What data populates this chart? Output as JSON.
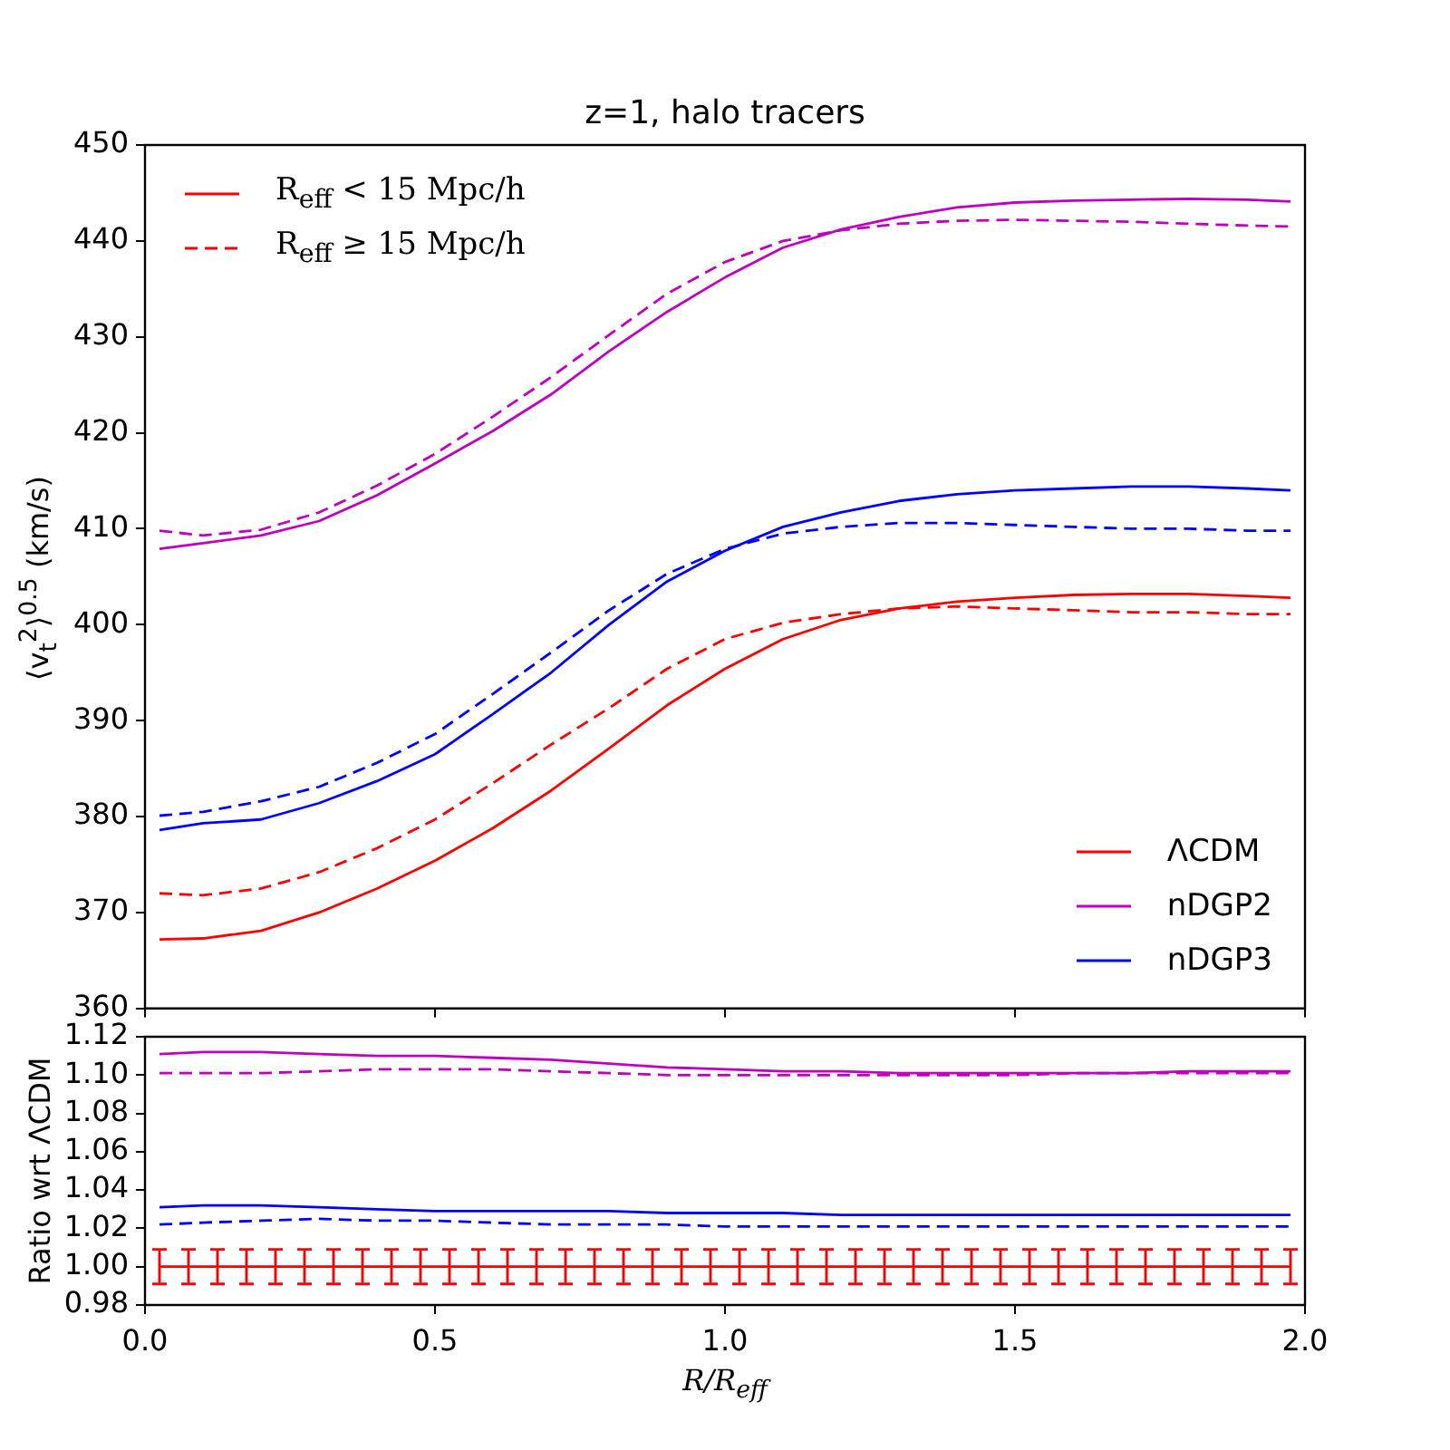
{
  "chart_data": [
    {
      "type": "line",
      "title": "z=1, halo tracers",
      "ylabel": "⟨v$_{t}$$^{2}$⟩$^{0.5}$ (km/s)",
      "xlim": [
        0,
        2
      ],
      "xticks": [
        0,
        0.5,
        1,
        1.5,
        2
      ],
      "ylim": [
        360,
        450
      ],
      "yticks": [
        360,
        370,
        380,
        390,
        400,
        410,
        420,
        430,
        440,
        450
      ],
      "tick_labels": "y",
      "legend": "bottom right",
      "marker": "none",
      "annotations": [
        "R$_{eff}$ < 15 Mpc/h",
        "R$_{eff}$ ≥ 15 Mpc/h"
      ],
      "x": [
        0.025,
        0.1,
        0.2,
        0.3,
        0.4,
        0.5,
        0.6,
        0.7,
        0.8,
        0.9,
        1.0,
        1.1,
        1.2,
        1.3,
        1.4,
        1.5,
        1.6,
        1.7,
        1.8,
        1.9,
        1.975
      ],
      "series": [
        {
          "name": "ΛCDM",
          "color": "#ff0000",
          "line_style": "solid",
          "values": [
            367.2,
            367.3,
            368.1,
            370,
            372.5,
            375.4,
            378.8,
            382.7,
            387.1,
            391.6,
            395.4,
            398.5,
            400.5,
            401.7,
            402.4,
            402.8,
            403.1,
            403.2,
            403.2,
            403,
            402.8
          ]
        },
        {
          "color": "#ff0000",
          "line_style": "dashed",
          "values": [
            372,
            371.8,
            372.5,
            374.2,
            376.7,
            379.7,
            383.5,
            387.5,
            391.3,
            395.4,
            398.5,
            400.2,
            401.1,
            401.7,
            401.9,
            401.7,
            401.5,
            401.3,
            401.3,
            401.1,
            401.1
          ]
        },
        {
          "name": "nDGP2",
          "color": "#bf00bf",
          "line_style": "solid",
          "values": [
            407.9,
            408.5,
            409.3,
            410.8,
            413.5,
            416.8,
            420.2,
            424,
            428.5,
            432.6,
            436.2,
            439.3,
            441.2,
            442.5,
            443.5,
            444,
            444.2,
            444.3,
            444.4,
            444.3,
            444.1
          ]
        },
        {
          "color": "#bf00bf",
          "line_style": "dashed",
          "values": [
            409.8,
            409.3,
            409.9,
            411.7,
            414.5,
            417.8,
            421.7,
            425.8,
            430.2,
            434.5,
            437.8,
            440,
            441.1,
            441.8,
            442.1,
            442.2,
            442.1,
            442,
            441.8,
            441.6,
            441.5
          ]
        },
        {
          "name": "nDGP3",
          "color": "#0000ff",
          "line_style": "solid",
          "values": [
            378.6,
            379.3,
            379.7,
            381.4,
            383.7,
            386.5,
            390.7,
            395,
            400,
            404.5,
            407.7,
            410.2,
            411.7,
            412.9,
            413.6,
            414,
            414.2,
            414.4,
            414.4,
            414.2,
            414
          ]
        },
        {
          "color": "#0000ff",
          "line_style": "dashed",
          "values": [
            380.1,
            380.5,
            381.6,
            383.1,
            385.6,
            388.6,
            392.8,
            397.1,
            401.5,
            405.3,
            407.9,
            409.5,
            410.2,
            410.6,
            410.6,
            410.4,
            410.2,
            410,
            410,
            409.8,
            409.8
          ]
        }
      ]
    },
    {
      "type": "line",
      "xlabel": "R/R$_{eff}$",
      "ylabel": "Ratio wrt ΛCDM",
      "xlim": [
        0,
        2
      ],
      "xticks": [
        {
          "value": 0,
          "label": "0.0"
        },
        0.5,
        {
          "value": 1,
          "label": "1.0"
        },
        1.5,
        {
          "value": 2,
          "label": "2.0"
        }
      ],
      "ylim": [
        0.98,
        1.12
      ],
      "yticks": [
        {
          "value": 0.98,
          "label": "0.98"
        },
        {
          "value": 1,
          "label": "1.00"
        },
        {
          "value": 1.02,
          "label": "1.02"
        },
        {
          "value": 1.04,
          "label": "1.04"
        },
        {
          "value": 1.06,
          "label": "1.06"
        },
        {
          "value": 1.08,
          "label": "1.08"
        },
        {
          "value": 1.1,
          "label": "1.10"
        },
        {
          "value": 1.12,
          "label": "1.12"
        }
      ],
      "legend": false,
      "marker": "none",
      "x": [
        0.025,
        0.1,
        0.2,
        0.3,
        0.4,
        0.5,
        0.6,
        0.7,
        0.8,
        0.9,
        1.0,
        1.1,
        1.2,
        1.3,
        1.4,
        1.5,
        1.6,
        1.7,
        1.8,
        1.9,
        1.975
      ],
      "series": [
        {
          "color": "#ff0000",
          "line_style": "solid",
          "x": [
            0.025,
            0.075,
            0.125,
            0.175,
            0.225,
            0.275,
            0.325,
            0.375,
            0.425,
            0.475,
            0.525,
            0.575,
            0.625,
            0.675,
            0.725,
            0.775,
            0.825,
            0.875,
            0.925,
            0.975,
            1.025,
            1.075,
            1.125,
            1.175,
            1.225,
            1.275,
            1.325,
            1.375,
            1.425,
            1.475,
            1.525,
            1.575,
            1.625,
            1.675,
            1.725,
            1.775,
            1.825,
            1.875,
            1.925,
            1.975
          ],
          "values": [
            1,
            1,
            1,
            1,
            1,
            1,
            1,
            1,
            1,
            1,
            1,
            1,
            1,
            1,
            1,
            1,
            1,
            1,
            1,
            1,
            1,
            1,
            1,
            1,
            1,
            1,
            1,
            1,
            1,
            1,
            1,
            1,
            1,
            1,
            1,
            1,
            1,
            1,
            1,
            1
          ],
          "errors": [
            0.009,
            0.009,
            0.009,
            0.009,
            0.009,
            0.009,
            0.009,
            0.009,
            0.009,
            0.009,
            0.009,
            0.009,
            0.009,
            0.009,
            0.009,
            0.009,
            0.009,
            0.009,
            0.009,
            0.009,
            0.009,
            0.009,
            0.009,
            0.009,
            0.009,
            0.009,
            0.009,
            0.009,
            0.009,
            0.009,
            0.009,
            0.009,
            0.009,
            0.009,
            0.009,
            0.009,
            0.009,
            0.009,
            0.009,
            0.009
          ]
        },
        {
          "color": "#bf00bf",
          "line_style": "solid",
          "values": [
            1.111,
            1.112,
            1.112,
            1.111,
            1.11,
            1.11,
            1.109,
            1.108,
            1.106,
            1.104,
            1.103,
            1.102,
            1.102,
            1.101,
            1.101,
            1.101,
            1.101,
            1.101,
            1.102,
            1.102,
            1.102
          ]
        },
        {
          "color": "#bf00bf",
          "line_style": "dashed",
          "values": [
            1.101,
            1.101,
            1.101,
            1.102,
            1.103,
            1.103,
            1.103,
            1.102,
            1.101,
            1.1,
            1.1,
            1.1,
            1.1,
            1.1,
            1.1,
            1.1,
            1.101,
            1.101,
            1.101,
            1.101,
            1.101
          ]
        },
        {
          "color": "#0000ff",
          "line_style": "solid",
          "values": [
            1.031,
            1.032,
            1.032,
            1.031,
            1.03,
            1.029,
            1.029,
            1.029,
            1.029,
            1.028,
            1.028,
            1.028,
            1.027,
            1.027,
            1.027,
            1.027,
            1.027,
            1.027,
            1.027,
            1.027,
            1.027
          ]
        },
        {
          "color": "#0000ff",
          "line_style": "dashed",
          "values": [
            1.022,
            1.023,
            1.024,
            1.025,
            1.024,
            1.024,
            1.023,
            1.022,
            1.022,
            1.022,
            1.021,
            1.021,
            1.021,
            1.021,
            1.021,
            1.021,
            1.021,
            1.021,
            1.021,
            1.021,
            1.021
          ]
        }
      ]
    }
  ]
}
